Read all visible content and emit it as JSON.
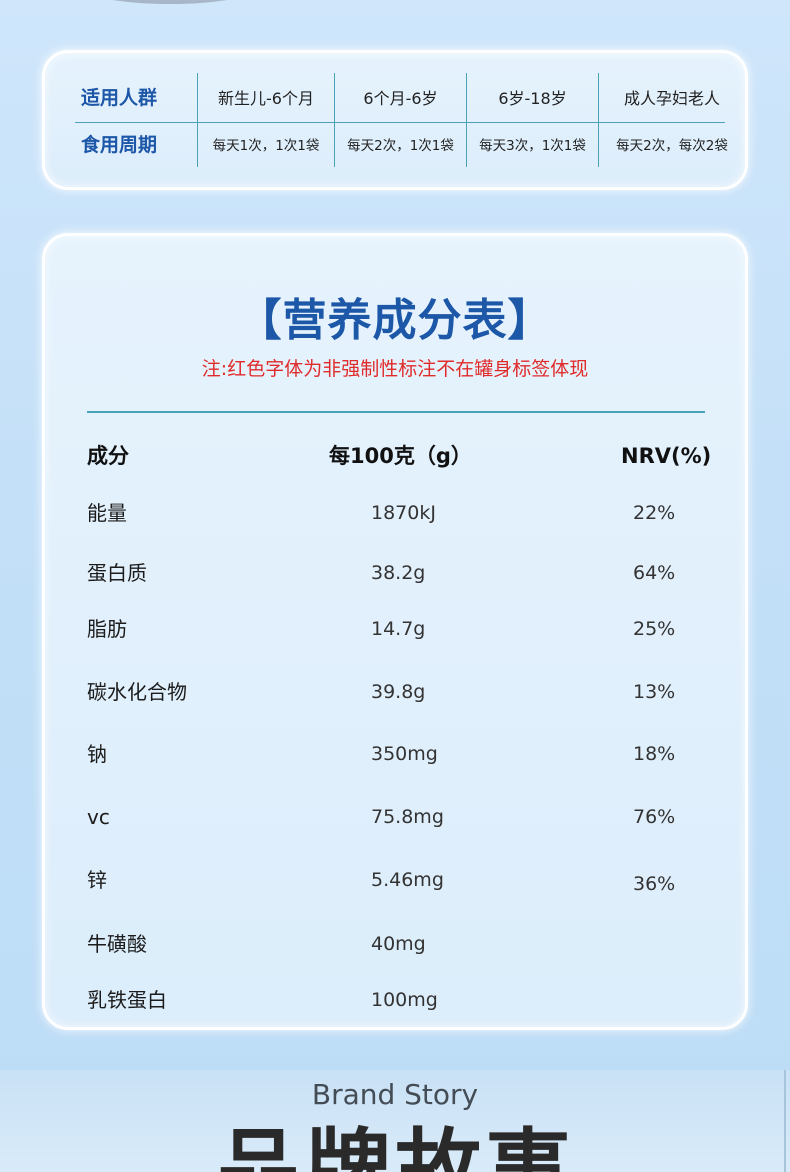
{
  "usage": {
    "header_age": "适用人群",
    "header_frequency": "食用周期",
    "columns": [
      {
        "age": "新生儿-6个月",
        "frequency": "每天1次，1次1袋"
      },
      {
        "age": "6个月-6岁",
        "frequency": "每天2次，1次1袋"
      },
      {
        "age": "6岁-18岁",
        "frequency": "每天3次，1次1袋"
      },
      {
        "age": "成人孕妇老人",
        "frequency": "每天2次，每次2袋"
      }
    ]
  },
  "nutrition": {
    "title": "【营养成分表】",
    "note": "注:红色字体为非强制性标注不在罐身标签体现",
    "headers": {
      "name": "成分",
      "amount": "每100克（g）",
      "nrv": "NRV(%)"
    },
    "rows": [
      {
        "name": "能量",
        "amount": "1870kJ",
        "nrv": "22%"
      },
      {
        "name": "蛋白质",
        "amount": "38.2g",
        "nrv": "64%"
      },
      {
        "name": "脂肪",
        "amount": "14.7g",
        "nrv": "25%"
      },
      {
        "name": "碳水化合物",
        "amount": "39.8g",
        "nrv": "13%"
      },
      {
        "name": "钠",
        "amount": "350mg",
        "nrv": "18%"
      },
      {
        "name": "vc",
        "amount": "75.8mg",
        "nrv": "76%"
      },
      {
        "name": "锌",
        "amount": "5.46mg",
        "nrv": "36%"
      },
      {
        "name": "牛磺酸",
        "amount": "40mg",
        "nrv": ""
      },
      {
        "name": "乳铁蛋白",
        "amount": "100mg",
        "nrv": ""
      }
    ]
  },
  "brand": {
    "english": "Brand Story",
    "chinese": "品牌故事"
  }
}
